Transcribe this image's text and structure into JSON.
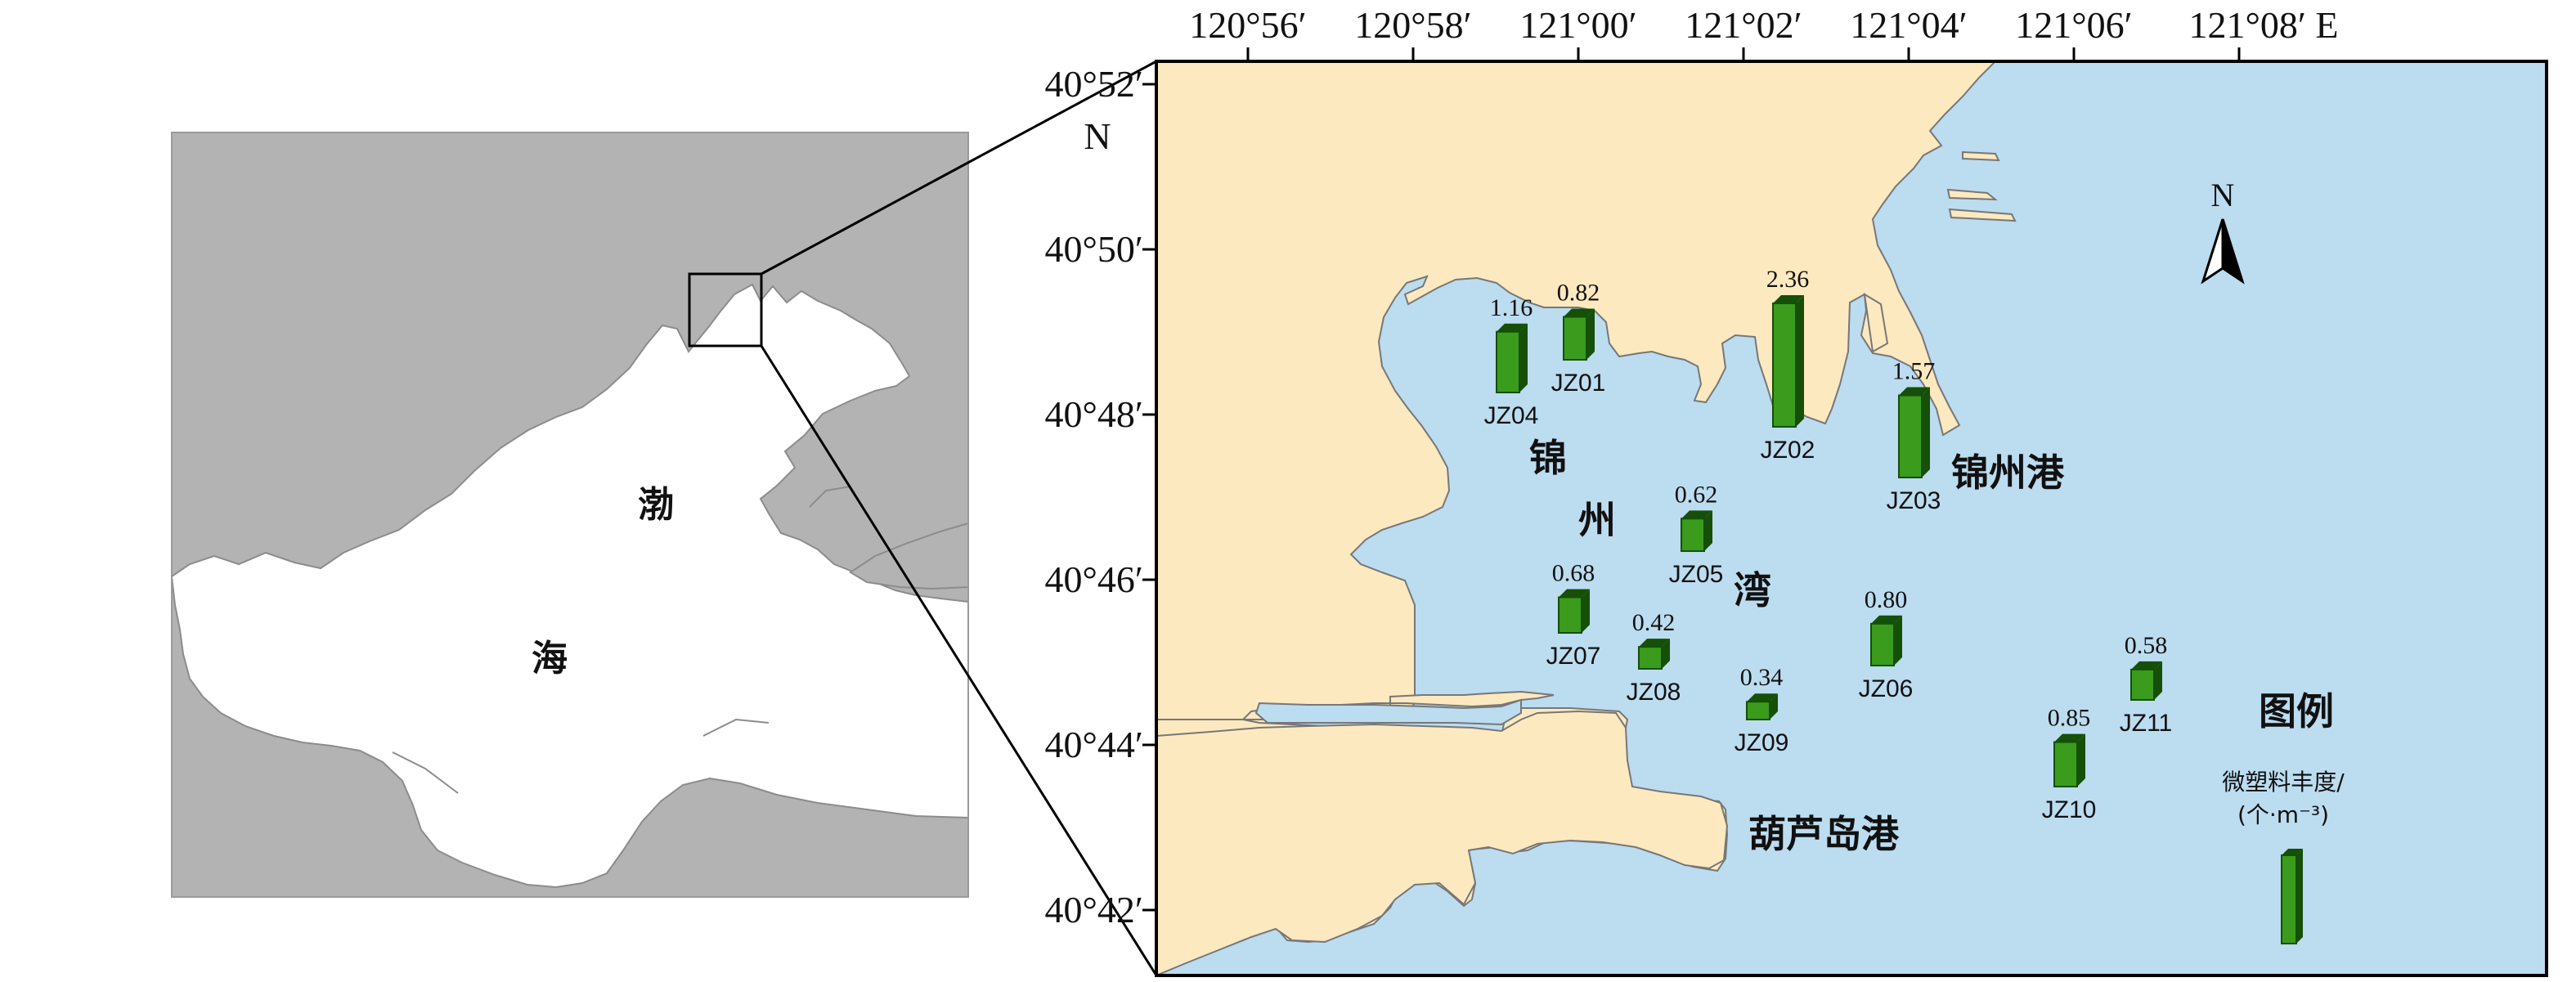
{
  "overview": {
    "sea_chars": [
      "渤",
      "海"
    ]
  },
  "axes": {
    "top_ticks": [
      "120°56′",
      "120°58′",
      "121°00′",
      "121°02′",
      "121°04′",
      "121°06′",
      "121°08′ E"
    ],
    "left_ticks": [
      "40°52′",
      "40°50′",
      "40°48′",
      "40°46′",
      "40°44′",
      "40°42′"
    ],
    "north_letter": "N"
  },
  "places": {
    "bay_chars": [
      "锦",
      "州",
      "湾"
    ],
    "port_jinzhou": "锦州港",
    "port_huludao": "葫芦岛港"
  },
  "compass": {
    "label": "N",
    "icon": "north-arrow-icon"
  },
  "legend": {
    "title": "图例",
    "subtitle_line1": "微塑料丰度/",
    "subtitle_line2": "(个·m⁻³)"
  },
  "colors": {
    "land_overview": "#b3b3b3",
    "sea_overview": "#ffffff",
    "land_detail": "#fde9c0",
    "sea_detail": "#bcdcf0",
    "bar_front": "#3b9b1c",
    "bar_side": "#154f08"
  },
  "chart_data": {
    "type": "bar",
    "series": [
      {
        "values": [
          {
            "station": "JZ01",
            "value": 0.82
          },
          {
            "station": "JZ02",
            "value": 2.36
          },
          {
            "station": "JZ03",
            "value": 1.57
          },
          {
            "station": "JZ04",
            "value": 1.16
          },
          {
            "station": "JZ05",
            "value": 0.62
          },
          {
            "station": "JZ06",
            "value": 0.8
          },
          {
            "station": "JZ07",
            "value": 0.68
          },
          {
            "station": "JZ08",
            "value": 0.42
          },
          {
            "station": "JZ09",
            "value": 0.34
          },
          {
            "station": "JZ10",
            "value": 0.85
          },
          {
            "station": "JZ11",
            "value": 0.58
          }
        ]
      }
    ]
  }
}
